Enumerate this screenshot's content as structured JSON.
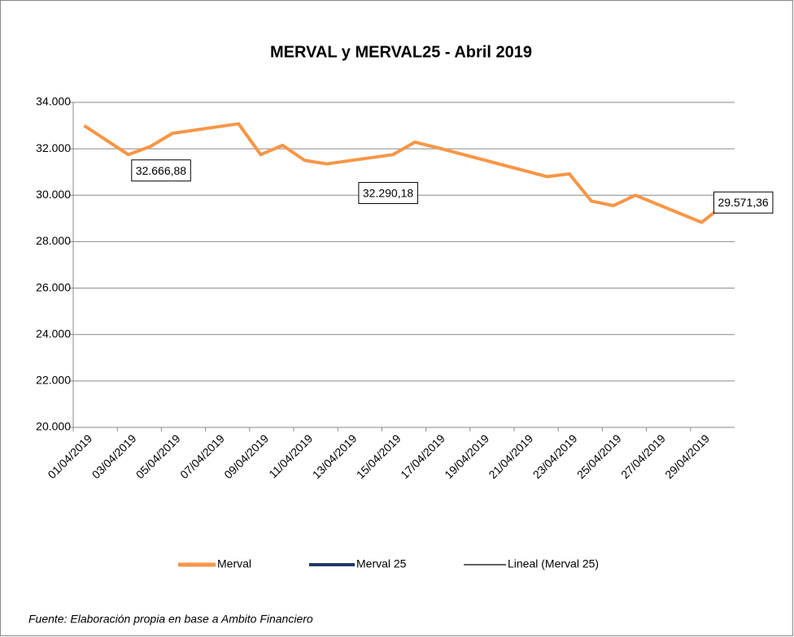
{
  "chart_data": {
    "type": "line",
    "title": "MERVAL y MERVAL25 -  Abril 2019",
    "x": [
      "01/04/2019",
      "03/04/2019",
      "04/04/2019",
      "05/04/2019",
      "08/04/2019",
      "09/04/2019",
      "10/04/2019",
      "11/04/2019",
      "12/04/2019",
      "15/04/2019",
      "16/04/2019",
      "17/04/2019",
      "22/04/2019",
      "23/04/2019",
      "24/04/2019",
      "25/04/2019",
      "26/04/2019",
      "29/04/2019",
      "30/04/2019"
    ],
    "xlim": [
      "01/04/2019",
      "30/04/2019"
    ],
    "xticks": [
      "01/04/2019",
      "03/04/2019",
      "05/04/2019",
      "07/04/2019",
      "09/04/2019",
      "11/04/2019",
      "13/04/2019",
      "15/04/2019",
      "17/04/2019",
      "19/04/2019",
      "21/04/2019",
      "23/04/2019",
      "25/04/2019",
      "27/04/2019",
      "29/04/2019"
    ],
    "series": [
      {
        "name": "Merval",
        "color": "#f79646",
        "values": [
          33000,
          31750,
          32100,
          32666.88,
          33080,
          31750,
          32150,
          31500,
          31350,
          31750,
          32290.18,
          32050,
          30800,
          30920,
          29750,
          29550,
          30000,
          28830,
          29571.36
        ],
        "value_labels": [
          null,
          null,
          null,
          "32.666,88",
          null,
          null,
          null,
          null,
          null,
          null,
          "32.290,18",
          null,
          null,
          null,
          null,
          null,
          null,
          null,
          "29.571,36"
        ]
      },
      {
        "name": "Merval 25",
        "color": "#1f3864"
      },
      {
        "name": "Lineal (Merval 25)",
        "color": "#000000"
      }
    ],
    "ylim": [
      20000,
      34000
    ],
    "yticks": [
      {
        "value": 20000,
        "label": "20.000"
      },
      {
        "value": 22000,
        "label": "22.000"
      },
      {
        "value": 24000,
        "label": "24.000"
      },
      {
        "value": 26000,
        "label": "26.000"
      },
      {
        "value": 28000,
        "label": "28.000"
      },
      {
        "value": 30000,
        "label": "30.000"
      },
      {
        "value": 32000,
        "label": "32.000"
      },
      {
        "value": 34000,
        "label": "34.000"
      }
    ],
    "grid": true,
    "legend": "bottom",
    "note": "Fuente: Elaboración propia en base a Ambito Financiero"
  }
}
